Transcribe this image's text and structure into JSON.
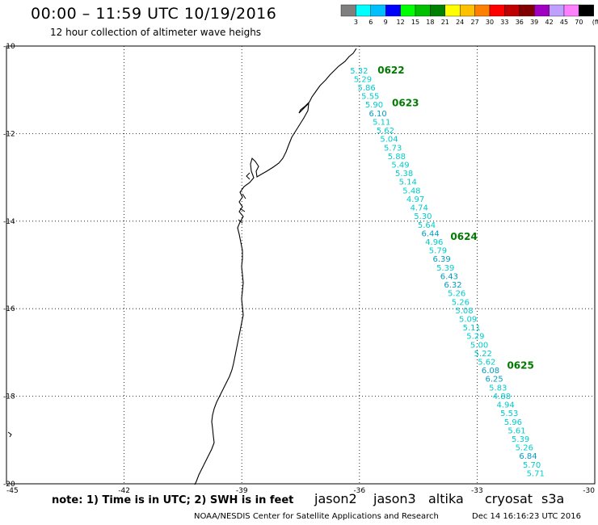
{
  "title": "00:00 – 11:59 UTC 10/19/2016",
  "subtitle": "12 hour collection of altimeter wave heighs",
  "colorbar": {
    "unit": "(ft)",
    "ticks": [
      "3",
      "6",
      "9",
      "12",
      "15",
      "18",
      "21",
      "24",
      "27",
      "30",
      "33",
      "36",
      "39",
      "42",
      "45",
      "70"
    ],
    "colors": [
      "#7f7f7f",
      "#00ffff",
      "#00bfff",
      "#0000ff",
      "#00ff00",
      "#00c000",
      "#008000",
      "#ffff00",
      "#ffc000",
      "#ff8000",
      "#ff0000",
      "#c00000",
      "#800000",
      "#a000c0",
      "#c0a0ff",
      "#ff80ff",
      "#000000"
    ]
  },
  "axes": {
    "lat_labels": [
      "-10",
      "-12",
      "-14",
      "-16",
      "-18",
      "-20"
    ],
    "lon_labels": [
      "-45",
      "-42",
      "-39",
      "-36",
      "-33",
      "-30"
    ]
  },
  "passes": [
    {
      "label": "0622",
      "lat": -10.55
    },
    {
      "label": "0623",
      "lat": -11.3
    },
    {
      "label": "0624",
      "lat": -14.35
    },
    {
      "label": "0625",
      "lat": -17.3
    }
  ],
  "swh_track": [
    "5.32",
    "5.29",
    "5.86",
    "5.55",
    "5.90",
    "6.10",
    "5.11",
    "5.62",
    "5.04",
    "5.73",
    "5.88",
    "5.49",
    "5.38",
    "5.14",
    "5.48",
    "4.97",
    "4.74",
    "5.30",
    "5.64",
    "6.44",
    "4.96",
    "5.79",
    "6.39",
    "5.39",
    "6.43",
    "6.32",
    "5.26",
    "5.26",
    "5.08",
    "5.09",
    "5.11",
    "5.29",
    "5.00",
    "5.22",
    "5.62",
    "6.08",
    "6.25",
    "5.83",
    "4.88",
    "4.94",
    "5.53",
    "5.96",
    "5.61",
    "5.39",
    "5.26",
    "6.84",
    "5.70",
    "5.71"
  ],
  "note": "note:  1) Time is in UTC;  2) SWH is in feet",
  "satellites": [
    {
      "name": "jason2",
      "color": "#0000cc"
    },
    {
      "name": "jason3",
      "color": "#009900"
    },
    {
      "name": "altika",
      "color": "#ff9900"
    },
    {
      "name": "cryosat",
      "color": "#cc0000"
    },
    {
      "name": "s3a",
      "color": "#990000"
    }
  ],
  "footer": "NOAA/NESDIS Center for Satellite Applications and Research",
  "footer_time": "Dec 14 16:16:23 UTC 2016"
}
